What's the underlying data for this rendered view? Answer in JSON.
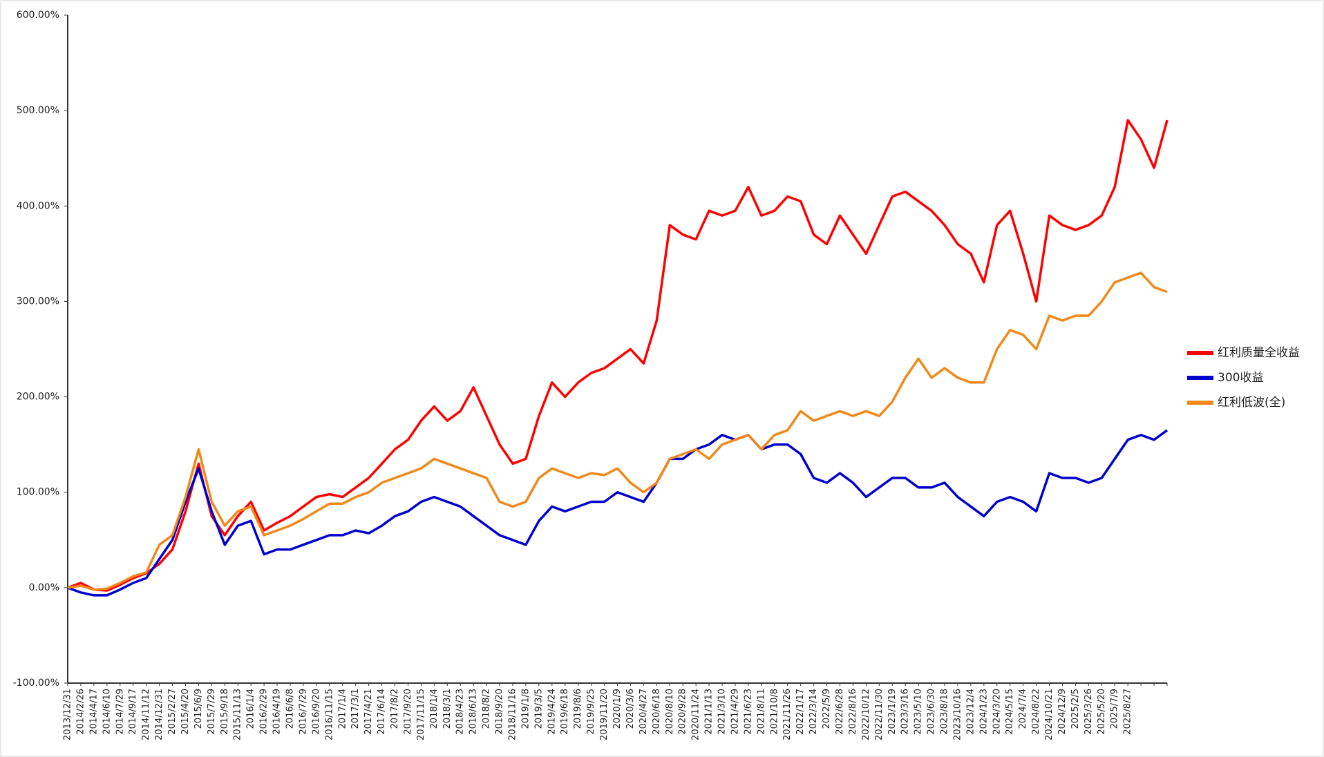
{
  "chart_data": {
    "type": "line",
    "categories": [
      "2013/12/31",
      "2014/2/26",
      "2014/4/17",
      "2014/6/10",
      "2014/7/29",
      "2014/9/17",
      "2014/11/12",
      "2014/12/31",
      "2015/2/27",
      "2015/4/20",
      "2015/6/9",
      "2015/7/29",
      "2015/9/18",
      "2015/11/13",
      "2016/1/4",
      "2016/2/29",
      "2016/4/19",
      "2016/6/8",
      "2016/7/29",
      "2016/9/20",
      "2016/11/15",
      "2017/1/4",
      "2017/3/1",
      "2017/4/21",
      "2017/6/14",
      "2017/8/2",
      "2017/9/20",
      "2017/11/15",
      "2018/1/4",
      "2018/3/1",
      "2018/4/23",
      "2018/6/13",
      "2018/8/2",
      "2018/9/20",
      "2018/11/16",
      "2019/1/8",
      "2019/3/5",
      "2019/4/24",
      "2019/6/18",
      "2019/8/6",
      "2019/9/25",
      "2019/11/20",
      "2020/1/9",
      "2020/3/6",
      "2020/4/27",
      "2020/6/18",
      "2020/8/10",
      "2020/9/28",
      "2020/11/24",
      "2021/1/13",
      "2021/3/10",
      "2021/4/29",
      "2021/6/23",
      "2021/8/11",
      "2021/10/8",
      "2021/11/26",
      "2022/1/17",
      "2022/3/14",
      "2022/5/9",
      "2022/6/28",
      "2022/8/16",
      "2022/10/12",
      "2022/11/30",
      "2023/1/19",
      "2023/3/16",
      "2023/5/10",
      "2023/6/30",
      "2023/8/18",
      "2023/10/16",
      "2023/12/4",
      "2024/1/23",
      "2024/3/20",
      "2024/5/15",
      "2024/7/4",
      "2024/8/22",
      "2024/10/21",
      "2024/12/9",
      "2025/2/5",
      "2025/3/26",
      "2025/5/20",
      "2025/7/9",
      "2025/8/27",
      null,
      null,
      null
    ],
    "series": [
      {
        "name": "红利质量全收益",
        "color": "#ff0000",
        "values": [
          0,
          5,
          -2,
          -3,
          3,
          10,
          15,
          25,
          40,
          80,
          130,
          75,
          55,
          75,
          90,
          60,
          68,
          75,
          85,
          95,
          98,
          95,
          105,
          115,
          130,
          145,
          155,
          175,
          190,
          175,
          185,
          210,
          180,
          150,
          130,
          135,
          180,
          215,
          200,
          215,
          225,
          230,
          240,
          250,
          235,
          280,
          380,
          370,
          365,
          395,
          390,
          395,
          420,
          390,
          395,
          410,
          405,
          370,
          360,
          390,
          370,
          350,
          380,
          410,
          415,
          405,
          395,
          380,
          360,
          350,
          320,
          380,
          395,
          350,
          300,
          390,
          380,
          375,
          380,
          390,
          420,
          490,
          470,
          440,
          490
        ]
      },
      {
        "name": "300收益",
        "color": "#0000cc",
        "values": [
          0,
          -5,
          -8,
          -8,
          -2,
          5,
          10,
          30,
          50,
          90,
          125,
          80,
          45,
          65,
          70,
          35,
          40,
          40,
          45,
          50,
          55,
          55,
          60,
          57,
          65,
          75,
          80,
          90,
          95,
          90,
          85,
          75,
          65,
          55,
          50,
          45,
          70,
          85,
          80,
          85,
          90,
          90,
          100,
          95,
          90,
          110,
          135,
          135,
          145,
          150,
          160,
          155,
          160,
          145,
          150,
          150,
          140,
          115,
          110,
          120,
          110,
          95,
          105,
          115,
          115,
          105,
          105,
          110,
          95,
          85,
          75,
          90,
          95,
          90,
          80,
          120,
          115,
          115,
          110,
          115,
          135,
          155,
          160,
          155,
          165
        ]
      },
      {
        "name": "红利低波(全)",
        "color": "#f0891a",
        "values": [
          0,
          2,
          -2,
          -1,
          5,
          12,
          16,
          45,
          55,
          95,
          145,
          90,
          65,
          80,
          85,
          55,
          60,
          65,
          72,
          80,
          88,
          88,
          95,
          100,
          110,
          115,
          120,
          125,
          135,
          130,
          125,
          120,
          115,
          90,
          85,
          90,
          115,
          125,
          120,
          115,
          120,
          118,
          125,
          110,
          100,
          110,
          135,
          140,
          145,
          135,
          150,
          155,
          160,
          145,
          160,
          165,
          185,
          175,
          180,
          185,
          180,
          185,
          180,
          195,
          220,
          240,
          220,
          230,
          220,
          215,
          215,
          250,
          270,
          265,
          250,
          285,
          280,
          285,
          285,
          300,
          320,
          325,
          330,
          315,
          310
        ]
      }
    ],
    "ylim": [
      -100,
      600
    ],
    "yticks": [
      {
        "value": -100,
        "label": "-100.00%"
      },
      {
        "value": 0,
        "label": "0.00%"
      },
      {
        "value": 100,
        "label": "100.00%"
      },
      {
        "value": 200,
        "label": "200.00%"
      },
      {
        "value": 300,
        "label": "300.00%"
      },
      {
        "value": 400,
        "label": "400.00%"
      },
      {
        "value": 500,
        "label": "500.00%"
      },
      {
        "value": 600,
        "label": "600.00%"
      }
    ],
    "legend": "right",
    "grid": false
  }
}
